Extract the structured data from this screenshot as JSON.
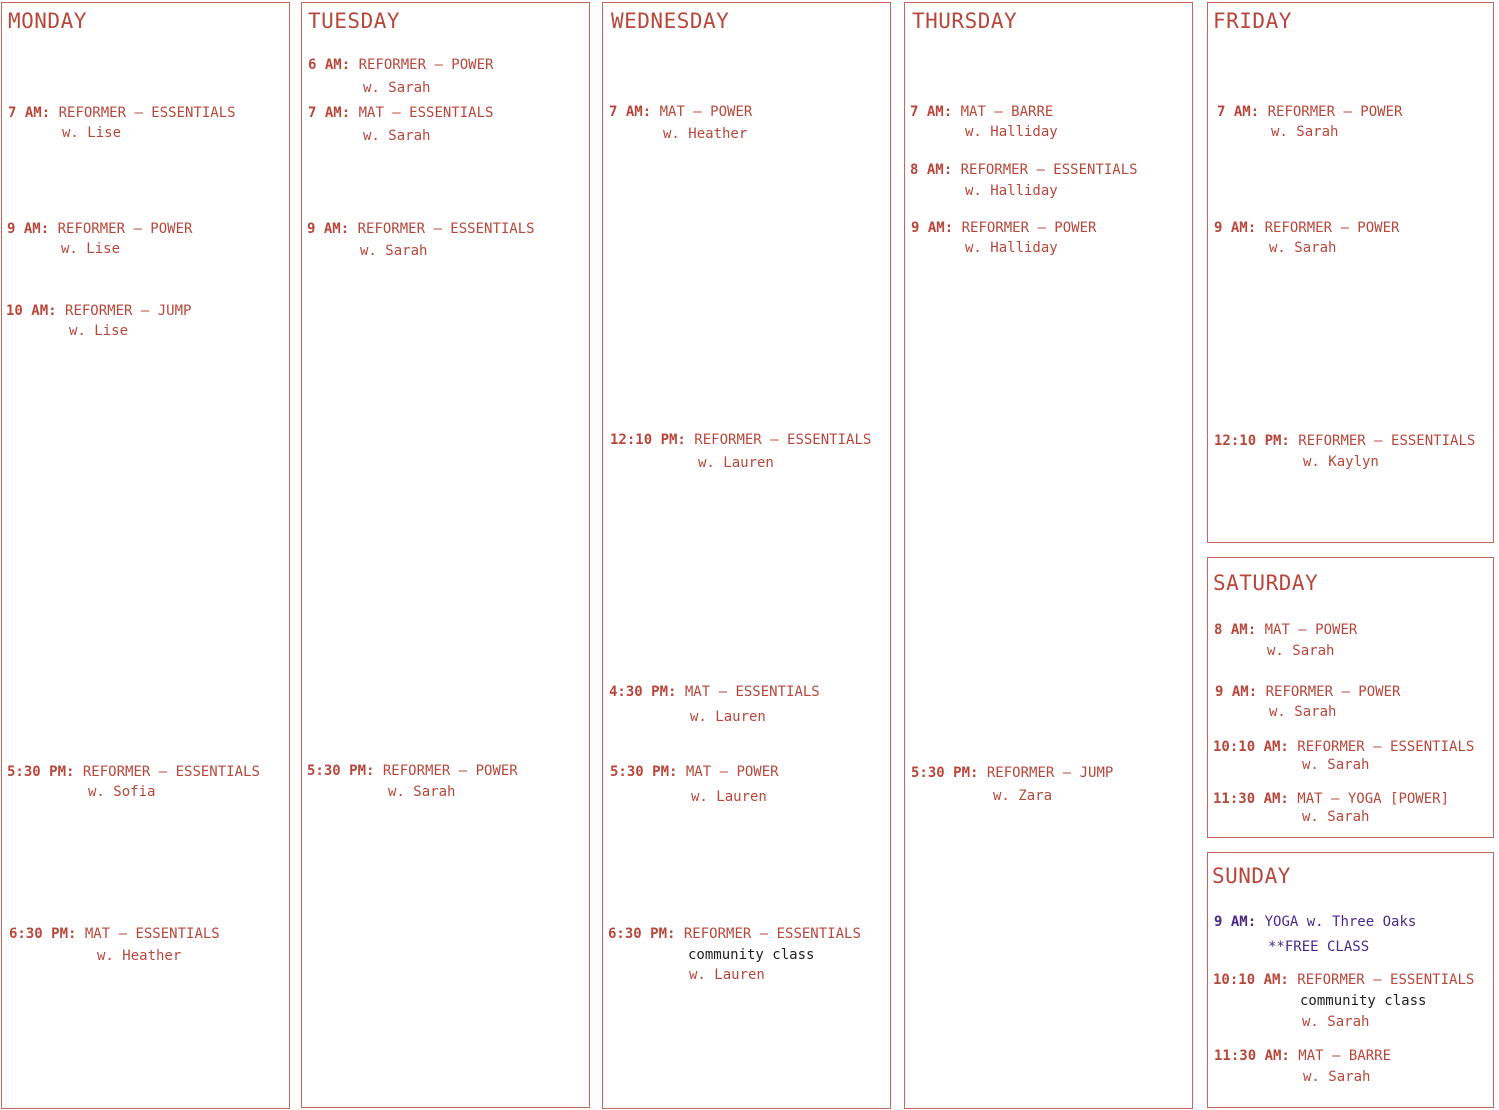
{
  "days": {
    "monday": {
      "title": "MONDAY",
      "classes": [
        {
          "time": "7 AM:",
          "name": "REFORMER – ESSENTIALS",
          "teacher": "w. Lise"
        },
        {
          "time": "9 AM:",
          "name": "REFORMER – POWER",
          "teacher": "w. Lise"
        },
        {
          "time": "10 AM:",
          "name": "REFORMER – JUMP",
          "teacher": "w. Lise"
        },
        {
          "time": "5:30 PM:",
          "name": "REFORMER – ESSENTIALS",
          "teacher": "w. Sofia"
        },
        {
          "time": "6:30 PM:",
          "name": "MAT – ESSENTIALS",
          "teacher": "w. Heather"
        }
      ]
    },
    "tuesday": {
      "title": "TUESDAY",
      "classes": [
        {
          "time": "6 AM:",
          "name": "REFORMER – POWER",
          "teacher": "w. Sarah"
        },
        {
          "time": "7 AM:",
          "name": "MAT – ESSENTIALS",
          "teacher": "w. Sarah"
        },
        {
          "time": "9 AM:",
          "name": "REFORMER – ESSENTIALS",
          "teacher": "w. Sarah"
        },
        {
          "time": "5:30 PM:",
          "name": "REFORMER – POWER",
          "teacher": "w. Sarah"
        }
      ]
    },
    "wednesday": {
      "title": "WEDNESDAY",
      "classes": [
        {
          "time": "7 AM:",
          "name": "MAT – POWER",
          "teacher": "w. Heather"
        },
        {
          "time": "12:10 PM:",
          "name": "REFORMER – ESSENTIALS",
          "teacher": "w. Lauren"
        },
        {
          "time": "4:30 PM:",
          "name": "MAT – ESSENTIALS",
          "teacher": "w. Lauren"
        },
        {
          "time": "5:30 PM:",
          "name": "MAT – POWER",
          "teacher": "w. Lauren"
        },
        {
          "time": "6:30 PM:",
          "name": "REFORMER – ESSENTIALS",
          "note": "community class",
          "teacher": "w. Lauren"
        }
      ]
    },
    "thursday": {
      "title": "THURSDAY",
      "classes": [
        {
          "time": "7 AM:",
          "name": "MAT – BARRE",
          "teacher": "w. Halliday"
        },
        {
          "time": "8 AM:",
          "name": "REFORMER – ESSENTIALS",
          "teacher": "w. Halliday"
        },
        {
          "time": "9 AM:",
          "name": "REFORMER – POWER",
          "teacher": "w. Halliday"
        },
        {
          "time": "5:30 PM:",
          "name": "REFORMER – JUMP",
          "teacher": "w. Zara"
        }
      ]
    },
    "friday": {
      "title": "FRIDAY",
      "classes": [
        {
          "time": "7 AM:",
          "name": "REFORMER – POWER",
          "teacher": "w. Sarah"
        },
        {
          "time": "9 AM:",
          "name": "REFORMER – POWER",
          "teacher": "w. Sarah"
        },
        {
          "time": "12:10 PM:",
          "name": "REFORMER – ESSENTIALS",
          "teacher": "w. Kaylyn"
        }
      ]
    },
    "saturday": {
      "title": "SATURDAY",
      "classes": [
        {
          "time": "8 AM:",
          "name": "MAT – POWER",
          "teacher": "w. Sarah"
        },
        {
          "time": "9 AM:",
          "name": "REFORMER – POWER",
          "teacher": "w. Sarah"
        },
        {
          "time": "10:10 AM:",
          "name": "REFORMER – ESSENTIALS",
          "teacher": "w. Sarah"
        },
        {
          "time": "11:30 AM:",
          "name": "MAT – YOGA [POWER]",
          "teacher": "w. Sarah"
        }
      ]
    },
    "sunday": {
      "title": "SUNDAY",
      "classes": [
        {
          "time": "9 AM:",
          "name": "YOGA w. Three Oaks",
          "teacher": "**FREE CLASS"
        },
        {
          "time": "10:10 AM:",
          "name": "REFORMER – ESSENTIALS",
          "note": "community class",
          "teacher": "w. Sarah"
        },
        {
          "time": "11:30 AM:",
          "name": "MAT – BARRE",
          "teacher": "w. Sarah"
        }
      ]
    }
  },
  "colors": {
    "accent": "#b8473b",
    "border": "#c9665c",
    "free_class": "#4b2a8a",
    "note": "#222222"
  }
}
